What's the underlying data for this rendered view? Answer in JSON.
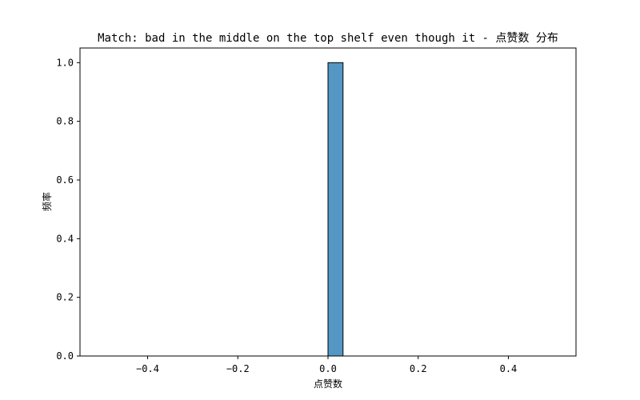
{
  "chart_data": {
    "type": "bar",
    "title": "Match: bad in the middle on the top shelf even though it - 点赞数 分布",
    "xlabel": "点赞数",
    "ylabel": "频率",
    "xlim": [
      -0.55,
      0.55
    ],
    "ylim": [
      0,
      1.05
    ],
    "xticks": [
      -0.4,
      -0.2,
      0.0,
      0.2,
      0.4
    ],
    "xtick_labels": [
      "−0.4",
      "−0.2",
      "0.0",
      "0.2",
      "0.4"
    ],
    "yticks": [
      0,
      0.2,
      0.4,
      0.6,
      0.8,
      1.0
    ],
    "ytick_labels": [
      "0.0",
      "0.2",
      "0.4",
      "0.6",
      "0.8",
      "1.0"
    ],
    "bins": {
      "start": -0.5,
      "end": 0.5,
      "count": 30,
      "values": [
        0,
        0,
        0,
        0,
        0,
        0,
        0,
        0,
        0,
        0,
        0,
        0,
        0,
        0,
        0,
        1,
        0,
        0,
        0,
        0,
        0,
        0,
        0,
        0,
        0,
        0,
        0,
        0,
        0,
        0
      ]
    },
    "bar_color": "#5497c5",
    "edge_color": "#000000",
    "grid": false,
    "legend": "none"
  }
}
